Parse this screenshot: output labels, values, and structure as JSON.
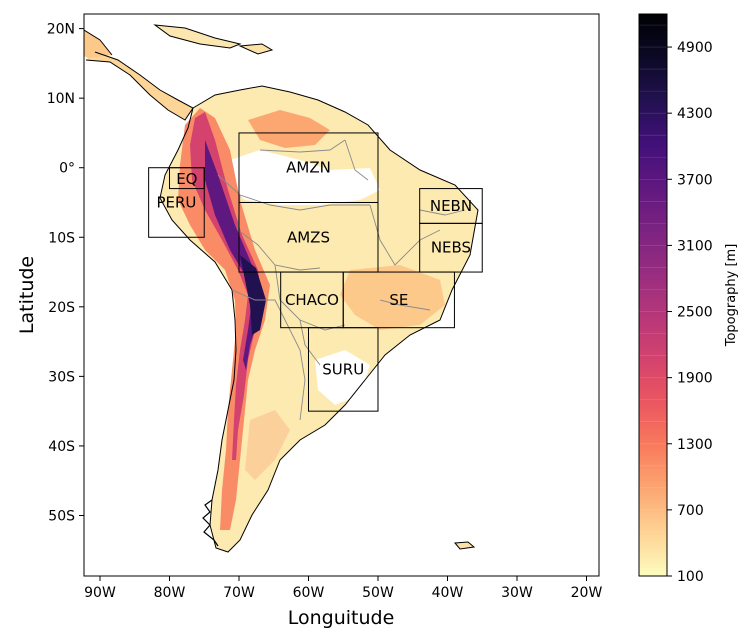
{
  "map": {
    "xlabel": "Longuitude",
    "ylabel": "Latitude",
    "x_ticks": [
      {
        "lon": -90,
        "label": "90W"
      },
      {
        "lon": -80,
        "label": "80W"
      },
      {
        "lon": -70,
        "label": "70W"
      },
      {
        "lon": -60,
        "label": "60W"
      },
      {
        "lon": -50,
        "label": "50W"
      },
      {
        "lon": -40,
        "label": "40W"
      },
      {
        "lon": -30,
        "label": "30W"
      },
      {
        "lon": -20,
        "label": "20W"
      }
    ],
    "y_ticks": [
      {
        "lat": 20,
        "label": "20N"
      },
      {
        "lat": 10,
        "label": "10N"
      },
      {
        "lat": 0,
        "label": "0°"
      },
      {
        "lat": -10,
        "label": "10S"
      },
      {
        "lat": -20,
        "label": "20S"
      },
      {
        "lat": -30,
        "label": "30S"
      },
      {
        "lat": -40,
        "label": "40S"
      },
      {
        "lat": -50,
        "label": "50S"
      }
    ],
    "extent": {
      "lon_min": -92.3,
      "lon_max": -18.2,
      "lat_min": -58.7,
      "lat_max": 22.1
    },
    "regions": [
      {
        "name": "AMZN",
        "lon": [
          -70,
          -50
        ],
        "lat": [
          -5,
          5
        ]
      },
      {
        "name": "AMZS",
        "lon": [
          -70,
          -50
        ],
        "lat": [
          -15,
          -5
        ]
      },
      {
        "name": "EQ",
        "lon": [
          -80,
          -75
        ],
        "lat": [
          -3,
          0
        ]
      },
      {
        "name": "PERU",
        "lon": [
          -83,
          -75
        ],
        "lat": [
          -10,
          0
        ]
      },
      {
        "name": "NEBN",
        "lon": [
          -44,
          -35
        ],
        "lat": [
          -8,
          -3
        ]
      },
      {
        "name": "NEBS",
        "lon": [
          -44,
          -35
        ],
        "lat": [
          -15,
          -8
        ]
      },
      {
        "name": "CHACO",
        "lon": [
          -64,
          -55
        ],
        "lat": [
          -23,
          -15
        ]
      },
      {
        "name": "SE",
        "lon": [
          -55,
          -39
        ],
        "lat": [
          -23,
          -15
        ]
      },
      {
        "name": "SURU",
        "lon": [
          -60,
          -50
        ],
        "lat": [
          -35,
          -23
        ]
      }
    ]
  },
  "colorbar": {
    "label": "Topography [m]",
    "vmin": 100,
    "vmax": 5200,
    "ticks": [
      100,
      700,
      1300,
      1900,
      2500,
      3100,
      3700,
      4300,
      4900
    ],
    "tick_labels": [
      "100",
      "700",
      "1300",
      "1900",
      "2500",
      "3100",
      "3700",
      "4300",
      "4900"
    ],
    "stops": [
      "#fcfdbf",
      "#fed395",
      "#fca772",
      "#f97b5d",
      "#eb5760",
      "#d3436e",
      "#b73779",
      "#982d80",
      "#7c2382",
      "#5f187f",
      "#42107a",
      "#221150",
      "#0c0926",
      "#000004"
    ]
  }
}
